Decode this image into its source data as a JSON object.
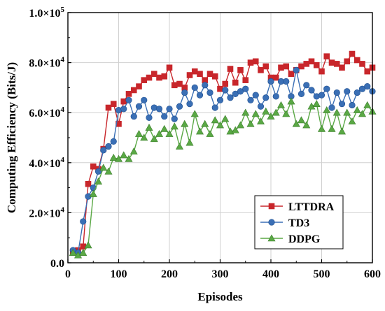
{
  "chart_data": {
    "type": "line",
    "xlabel": "Episodes",
    "ylabel": "Computing Efficiency (Bits/J)",
    "xlim": [
      0,
      600
    ],
    "ylim": [
      0,
      100000
    ],
    "x_ticks": [
      {
        "value": 0,
        "label": "0"
      },
      {
        "value": 100,
        "label": "100"
      },
      {
        "value": 200,
        "label": "200"
      },
      {
        "value": 300,
        "label": "300"
      },
      {
        "value": 400,
        "label": "400"
      },
      {
        "value": 500,
        "label": "500"
      },
      {
        "value": 600,
        "label": "600"
      }
    ],
    "y_ticks": [
      {
        "value": 0,
        "mantissa": "0.0",
        "exp": ""
      },
      {
        "value": 20000,
        "mantissa": "2.0×10",
        "exp": "4"
      },
      {
        "value": 40000,
        "mantissa": "4.0×10",
        "exp": "4"
      },
      {
        "value": 60000,
        "mantissa": "6.0×10",
        "exp": "4"
      },
      {
        "value": 80000,
        "mantissa": "8.0×10",
        "exp": "4"
      },
      {
        "value": 100000,
        "mantissa": "1.0×10",
        "exp": "5"
      }
    ],
    "grid": true,
    "legend_position": "bottom-right",
    "x": [
      10,
      20,
      30,
      40,
      50,
      60,
      70,
      80,
      90,
      100,
      110,
      120,
      130,
      140,
      150,
      160,
      170,
      180,
      190,
      200,
      210,
      220,
      230,
      240,
      250,
      260,
      270,
      280,
      290,
      300,
      310,
      320,
      330,
      340,
      350,
      360,
      370,
      380,
      390,
      400,
      410,
      420,
      430,
      440,
      450,
      460,
      470,
      480,
      490,
      500,
      510,
      520,
      530,
      540,
      550,
      560,
      570,
      580,
      590,
      600
    ],
    "series": [
      {
        "name": "LTTDRA",
        "color": "#c8262b",
        "marker": "square",
        "values": [
          4500,
          5000,
          6500,
          31500,
          38500,
          37500,
          45500,
          62000,
          63500,
          55500,
          64500,
          67500,
          69000,
          70500,
          73000,
          74000,
          75500,
          74000,
          74500,
          78000,
          71000,
          71500,
          70000,
          75000,
          76500,
          75500,
          73000,
          75500,
          74500,
          69500,
          71500,
          77500,
          72000,
          77000,
          73000,
          80000,
          80500,
          77000,
          78500,
          74000,
          74000,
          78000,
          78500,
          75500,
          77000,
          78500,
          79500,
          80500,
          79000,
          76500,
          82500,
          80000,
          79500,
          78000,
          80500,
          83500,
          81000,
          79500,
          76500,
          78000
        ]
      },
      {
        "name": "TD3",
        "color": "#3a6fb5",
        "marker": "circle",
        "values": [
          5000,
          4000,
          16500,
          26500,
          30000,
          36500,
          45000,
          46500,
          48500,
          61000,
          61500,
          65000,
          58500,
          62500,
          65000,
          58000,
          62000,
          61500,
          58500,
          61500,
          57500,
          62500,
          68000,
          63500,
          70000,
          67000,
          71000,
          68000,
          62000,
          65000,
          69000,
          66000,
          67500,
          68500,
          69500,
          65000,
          67000,
          62500,
          66000,
          72500,
          66500,
          72500,
          72500,
          66500,
          77000,
          67500,
          71000,
          69000,
          66500,
          67000,
          69500,
          62000,
          68000,
          63500,
          68500,
          63000,
          68000,
          69500,
          70500,
          68500
        ]
      },
      {
        "name": "DDPG",
        "color": "#5aa845",
        "marker": "triangle",
        "values": [
          4000,
          3000,
          4000,
          7000,
          27500,
          32500,
          38000,
          36500,
          42000,
          41500,
          43000,
          41500,
          44500,
          51500,
          50000,
          54000,
          49500,
          51500,
          53500,
          51500,
          54500,
          46500,
          55500,
          48000,
          59500,
          52500,
          55500,
          51500,
          57000,
          55000,
          57500,
          52500,
          53000,
          55000,
          60000,
          55500,
          59500,
          56500,
          60500,
          58500,
          60000,
          63000,
          59500,
          64500,
          55500,
          57000,
          55000,
          62500,
          63500,
          53500,
          61000,
          53500,
          60000,
          52500,
          60000,
          56500,
          61000,
          59500,
          63000,
          60500
        ]
      }
    ]
  }
}
